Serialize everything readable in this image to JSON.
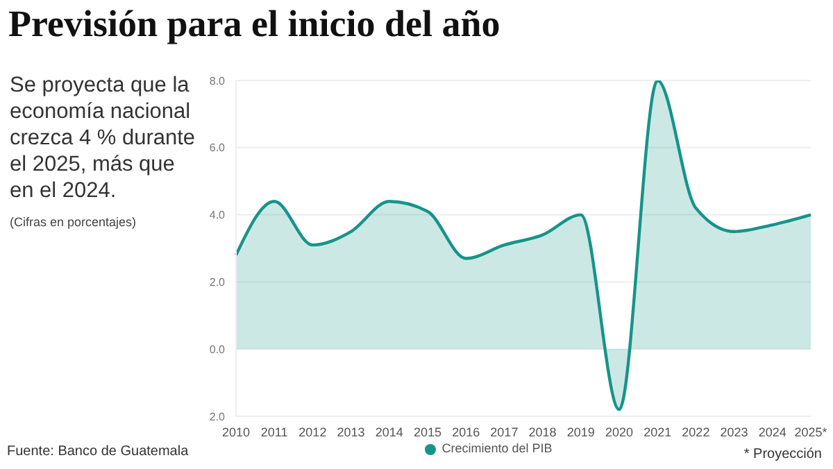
{
  "chart_data": {
    "type": "area",
    "title": "Previsión para el inicio del año",
    "subtitle": "Se proyecta que la economía nacional crezca 4 % durante el 2025, más que en el 2024.",
    "annotations": [
      "(Cifras en porcentajes)",
      "Fuente: Banco de Guatemala",
      "* Proyección"
    ],
    "categories": [
      "2010",
      "2011",
      "2012",
      "2013",
      "2014",
      "2015",
      "2016",
      "2017",
      "2018",
      "2019",
      "2020",
      "2021",
      "2022",
      "2023",
      "2024",
      "2025*"
    ],
    "series": [
      {
        "name": "Crecimiento del PIB",
        "color": "#16948a",
        "values": [
          2.8,
          4.4,
          3.1,
          3.5,
          4.4,
          4.1,
          2.7,
          3.1,
          3.4,
          4.0,
          -1.8,
          8.0,
          4.2,
          3.5,
          3.7,
          4.0
        ]
      }
    ],
    "ylim": [
      -2,
      8
    ],
    "yticks": [
      {
        "value": -2,
        "label": "2.0"
      },
      {
        "value": 0,
        "label": "0.0"
      },
      {
        "value": 2,
        "label": "2.0"
      },
      {
        "value": 4,
        "label": "4.0"
      },
      {
        "value": 6,
        "label": "6.0"
      },
      {
        "value": 8,
        "label": "8.0"
      }
    ],
    "grid": "y",
    "legend": "bottom"
  }
}
